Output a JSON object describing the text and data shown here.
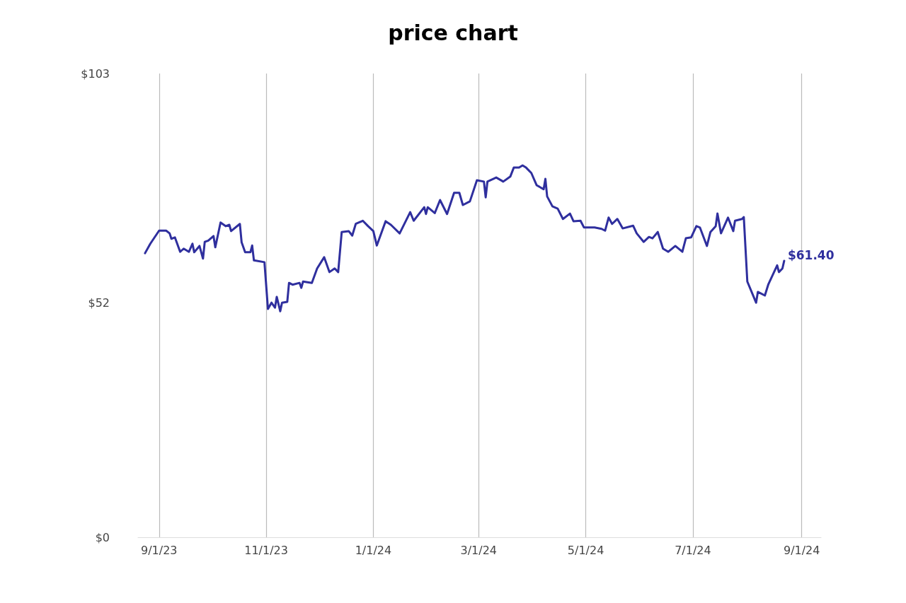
{
  "chart_data": {
    "type": "line",
    "title": "price chart",
    "x": [
      "2023-08-24",
      "2023-08-27",
      "2023-09-01",
      "2023-09-05",
      "2023-09-07",
      "2023-09-08",
      "2023-09-10",
      "2023-09-13",
      "2023-09-15",
      "2023-09-18",
      "2023-09-20",
      "2023-09-21",
      "2023-09-24",
      "2023-09-26",
      "2023-09-27",
      "2023-09-29",
      "2023-10-02",
      "2023-10-03",
      "2023-10-06",
      "2023-10-09",
      "2023-10-11",
      "2023-10-12",
      "2023-10-17",
      "2023-10-18",
      "2023-10-20",
      "2023-10-23",
      "2023-10-24",
      "2023-10-25",
      "2023-10-31",
      "2023-11-02",
      "2023-11-04",
      "2023-11-06",
      "2023-11-07",
      "2023-11-09",
      "2023-11-10",
      "2023-11-13",
      "2023-11-14",
      "2023-11-16",
      "2023-11-20",
      "2023-11-21",
      "2023-11-22",
      "2023-11-27",
      "2023-11-30",
      "2023-12-04",
      "2023-12-07",
      "2023-12-10",
      "2023-12-12",
      "2023-12-14",
      "2023-12-18",
      "2023-12-20",
      "2023-12-22",
      "2023-12-26",
      "2023-12-29",
      "2024-01-01",
      "2024-01-03",
      "2024-01-08",
      "2024-01-11",
      "2024-01-16",
      "2024-01-22",
      "2024-01-24",
      "2024-01-30",
      "2024-01-31",
      "2024-02-01",
      "2024-02-05",
      "2024-02-08",
      "2024-02-12",
      "2024-02-16",
      "2024-02-19",
      "2024-02-21",
      "2024-02-25",
      "2024-02-29",
      "2024-03-04",
      "2024-03-05",
      "2024-03-06",
      "2024-03-11",
      "2024-03-15",
      "2024-03-19",
      "2024-03-21",
      "2024-03-24",
      "2024-03-26",
      "2024-03-28",
      "2024-03-31",
      "2024-04-03",
      "2024-04-07",
      "2024-04-08",
      "2024-04-09",
      "2024-04-12",
      "2024-04-15",
      "2024-04-18",
      "2024-04-22",
      "2024-04-24",
      "2024-04-28",
      "2024-04-30",
      "2024-05-03",
      "2024-05-06",
      "2024-05-10",
      "2024-05-12",
      "2024-05-14",
      "2024-05-16",
      "2024-05-19",
      "2024-05-22",
      "2024-05-28",
      "2024-05-30",
      "2024-06-03",
      "2024-06-06",
      "2024-06-08",
      "2024-06-11",
      "2024-06-14",
      "2024-06-17",
      "2024-06-21",
      "2024-06-25",
      "2024-06-27",
      "2024-06-30",
      "2024-07-03",
      "2024-07-05",
      "2024-07-09",
      "2024-07-11",
      "2024-07-14",
      "2024-07-15",
      "2024-07-17",
      "2024-07-21",
      "2024-07-24",
      "2024-07-25",
      "2024-07-29",
      "2024-07-30",
      "2024-08-01",
      "2024-08-06",
      "2024-08-07",
      "2024-08-11",
      "2024-08-13",
      "2024-08-18",
      "2024-08-19",
      "2024-08-21",
      "2024-08-22"
    ],
    "series": [
      {
        "color": "#2f2f9e",
        "values": [
          63.1,
          65.2,
          68.1,
          68.1,
          67.5,
          66.3,
          66.6,
          63.4,
          64.1,
          63.4,
          65.2,
          63.3,
          64.7,
          61.9,
          65.6,
          65.9,
          66.9,
          64.4,
          69.9,
          69.1,
          69.4,
          68.0,
          69.6,
          65.5,
          63.3,
          63.3,
          64.8,
          61.5,
          61.1,
          50.7,
          52.1,
          51.0,
          53.4,
          50.2,
          52.1,
          52.3,
          56.5,
          56.1,
          56.5,
          55.4,
          56.8,
          56.5,
          59.7,
          62.2,
          58.9,
          59.7,
          58.9,
          67.8,
          68.0,
          67.0,
          69.6,
          70.3,
          69.1,
          68.0,
          64.8,
          70.2,
          69.4,
          67.5,
          72.2,
          70.3,
          73.3,
          71.8,
          73.3,
          72.0,
          74.9,
          71.8,
          76.5,
          76.5,
          73.8,
          74.6,
          79.3,
          79.0,
          75.5,
          79.0,
          79.9,
          79.0,
          80.1,
          82.1,
          82.1,
          82.6,
          82.1,
          80.9,
          78.2,
          77.3,
          79.6,
          75.7,
          73.5,
          73.0,
          70.7,
          71.9,
          70.2,
          70.3,
          68.8,
          68.8,
          68.8,
          68.5,
          68.1,
          71.0,
          69.6,
          70.7,
          68.6,
          69.2,
          67.5,
          65.6,
          66.7,
          66.4,
          67.8,
          64.1,
          63.4,
          64.7,
          63.4,
          66.4,
          66.6,
          69.1,
          68.8,
          64.7,
          67.8,
          69.1,
          71.9,
          67.5,
          71.0,
          68.0,
          70.3,
          70.7,
          71.1,
          56.8,
          52.1,
          54.5,
          53.7,
          56.2,
          60.4,
          58.9,
          59.7,
          61.4
        ]
      }
    ],
    "xticks": [
      {
        "value": "2023-09-01",
        "label": "9/1/23"
      },
      {
        "value": "2023-11-01",
        "label": "11/1/23"
      },
      {
        "value": "2024-01-01",
        "label": "1/1/24"
      },
      {
        "value": "2024-03-01",
        "label": "3/1/24"
      },
      {
        "value": "2024-05-01",
        "label": "5/1/24"
      },
      {
        "value": "2024-07-01",
        "label": "7/1/24"
      },
      {
        "value": "2024-09-01",
        "label": "9/1/24"
      }
    ],
    "xlim": [
      "2023-08-20",
      "2024-09-12"
    ],
    "ylim": [
      0,
      103
    ],
    "yticks": [
      {
        "value": 0,
        "label": "$0"
      },
      {
        "value": 52,
        "label": "$52"
      },
      {
        "value": 103,
        "label": "$103"
      }
    ],
    "grid": "x",
    "annotations": [
      {
        "text": "$61.40",
        "x": "2024-08-22",
        "y": 61.4
      }
    ]
  }
}
